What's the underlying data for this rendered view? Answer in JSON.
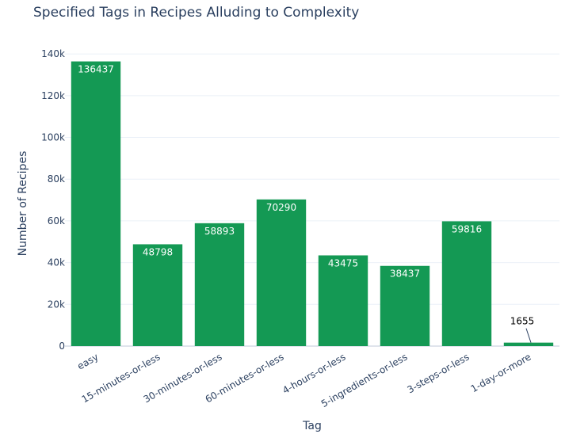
{
  "chart_data": {
    "type": "bar",
    "title": "Specified Tags in Recipes Alluding to Complexity",
    "xlabel": "Tag",
    "ylabel": "Number of Recipes",
    "categories": [
      "easy",
      "15-minutes-or-less",
      "30-minutes-or-less",
      "60-minutes-or-less",
      "4-hours-or-less",
      "5-ingredients-or-less",
      "3-steps-or-less",
      "1-day-or-more"
    ],
    "values": [
      136437,
      48798,
      58893,
      70290,
      43475,
      38437,
      59816,
      1655
    ],
    "value_labels": [
      "136437",
      "48798",
      "58893",
      "70290",
      "43475",
      "38437",
      "59816",
      "1655"
    ],
    "ylim": [
      0,
      145000
    ],
    "yticks": [
      0,
      20000,
      40000,
      60000,
      80000,
      100000,
      120000,
      140000
    ],
    "ytick_labels": [
      "0",
      "20k",
      "40k",
      "60k",
      "80k",
      "100k",
      "120k",
      "140k"
    ],
    "bar_color": "#149954",
    "grid": true
  }
}
